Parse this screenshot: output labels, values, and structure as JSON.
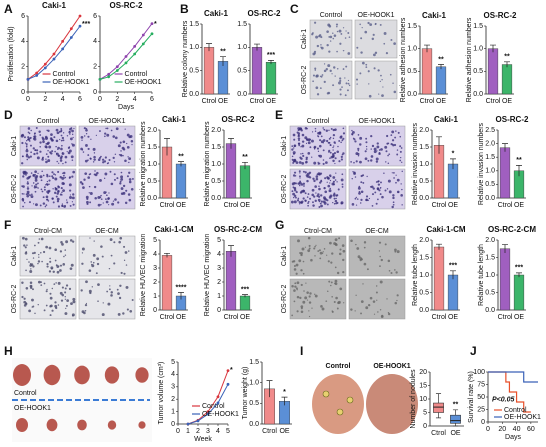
{
  "panel_labels": [
    "A",
    "B",
    "C",
    "D",
    "E",
    "F",
    "G",
    "H",
    "I",
    "J"
  ],
  "image_panels": [
    {
      "columns": [
        "Control",
        "OE-HOOK1"
      ],
      "rows": [
        "Caki-1",
        "OS-RC-2"
      ]
    },
    {
      "columns": [
        "Control",
        "OE-HOOK1"
      ],
      "rows": [
        "Caki-1",
        "OS-RC-2"
      ]
    },
    {
      "columns": [
        "Control",
        "OE-HOOK1"
      ],
      "rows": [
        "Caki-1",
        "OS-RC-2"
      ]
    },
    {
      "columns": [
        "Ctrol-CM",
        "OE-CM"
      ],
      "rows": [
        "Caki-1",
        "OS-RC-2"
      ]
    },
    {
      "columns": [
        "Ctrol-CM",
        "OE-CM"
      ],
      "rows": [
        "Caki-1",
        "OS-RC-2"
      ]
    }
  ],
  "photos": [
    {
      "labels": [
        "Control",
        "OE-HOOK1"
      ]
    },
    {
      "labels": [
        "Control",
        "OE-HOOK1"
      ]
    }
  ],
  "charts": [
    {
      "type": "line",
      "title": "Caki-1",
      "ylabel": "Proliferation (fold)",
      "x": [
        0,
        1,
        2,
        3,
        4,
        5,
        6
      ],
      "xlim": [
        0,
        6
      ],
      "xticks": [
        0,
        2,
        4,
        6
      ],
      "ylim": [
        0,
        6
      ],
      "yticks": [
        0,
        2,
        4,
        6
      ],
      "annotation": "***",
      "series": [
        {
          "name": "Control",
          "color": "#d9363e",
          "values": [
            1,
            1.5,
            2.2,
            3,
            4,
            5,
            6
          ]
        },
        {
          "name": "OE-HOOK1",
          "color": "#3a62b8",
          "values": [
            1,
            1.3,
            1.9,
            2.6,
            3.4,
            4.3,
            5.2
          ]
        }
      ]
    },
    {
      "type": "line",
      "title": "OS-RC-2",
      "xlabel": "Days",
      "x": [
        0,
        1,
        2,
        3,
        4,
        5,
        6
      ],
      "xlim": [
        0,
        6
      ],
      "xticks": [
        0,
        2,
        4,
        6
      ],
      "ylim": [
        0,
        6
      ],
      "yticks": [
        0,
        2,
        4,
        6
      ],
      "annotation": "*",
      "series": [
        {
          "name": "Control",
          "color": "#8e44ad",
          "values": [
            1,
            1.4,
            2,
            2.8,
            3.6,
            4.5,
            5.4
          ]
        },
        {
          "name": "OE-HOOK1",
          "color": "#27ae60",
          "values": [
            1,
            1.2,
            1.7,
            2.3,
            3,
            3.8,
            4.6
          ]
        }
      ]
    },
    {
      "type": "bar",
      "title": "Caki-1",
      "ylabel": "Relative colony numbers",
      "categories": [
        "Ctrol",
        "OE"
      ],
      "values": [
        1.0,
        0.7
      ],
      "errors": [
        0.08,
        0.1
      ],
      "colors": [
        "#f08a8a",
        "#5b8fd6"
      ],
      "ylim": [
        0,
        1.5
      ],
      "yticks": [
        {
          "value": 0,
          "label": "0.0"
        },
        {
          "value": 0.5,
          "label": "0.5"
        },
        {
          "value": 1,
          "label": "1.0"
        },
        {
          "value": 1.5,
          "label": "1.5"
        }
      ],
      "annotation": "**"
    },
    {
      "type": "bar",
      "title": "OS-RC-2",
      "categories": [
        "Ctrol",
        "OE"
      ],
      "values": [
        1.0,
        0.68
      ],
      "errors": [
        0.07,
        0.04
      ],
      "colors": [
        "#a05fc0",
        "#3cb56a"
      ],
      "ylim": [
        0,
        1.5
      ],
      "yticks": [
        {
          "value": 0,
          "label": "0.0"
        },
        {
          "value": 0.5,
          "label": "0.5"
        },
        {
          "value": 1,
          "label": "1.0"
        },
        {
          "value": 1.5,
          "label": "1.5"
        }
      ],
      "annotation": "***"
    },
    {
      "type": "bar",
      "title": "Caki-1",
      "ylabel": "Relative adhesion numbers",
      "categories": [
        "Ctrol",
        "OE"
      ],
      "values": [
        1.0,
        0.6
      ],
      "errors": [
        0.08,
        0.05
      ],
      "colors": [
        "#f08a8a",
        "#5b8fd6"
      ],
      "ylim": [
        0,
        1.5
      ],
      "yticks": [
        {
          "value": 0,
          "label": "0.0"
        },
        {
          "value": 0.5,
          "label": "0.5"
        },
        {
          "value": 1,
          "label": "1.0"
        },
        {
          "value": 1.5,
          "label": "1.5"
        }
      ],
      "annotation": "**"
    },
    {
      "type": "bar",
      "title": "OS-RC-2",
      "ylabel": "Relative adhesion numbers",
      "categories": [
        "Ctrol",
        "OE"
      ],
      "values": [
        1.0,
        0.65
      ],
      "errors": [
        0.08,
        0.06
      ],
      "colors": [
        "#a05fc0",
        "#3cb56a"
      ],
      "ylim": [
        0,
        1.5
      ],
      "yticks": [
        {
          "value": 0,
          "label": "0.0"
        },
        {
          "value": 0.5,
          "label": "0.5"
        },
        {
          "value": 1,
          "label": "1.0"
        },
        {
          "value": 1.5,
          "label": "1.5"
        }
      ],
      "annotation": "**"
    },
    {
      "type": "bar",
      "title": "Caki-1",
      "ylabel": "Relative migration numbers",
      "categories": [
        "Ctrol",
        "OE"
      ],
      "values": [
        1.5,
        1.0
      ],
      "errors": [
        0.25,
        0.07
      ],
      "colors": [
        "#f08a8a",
        "#5b8fd6"
      ],
      "ylim": [
        0,
        2
      ],
      "yticks": [
        {
          "value": 0,
          "label": "0.0"
        },
        {
          "value": 0.5,
          "label": "0.5"
        },
        {
          "value": 1,
          "label": "1.0"
        },
        {
          "value": 1.5,
          "label": "1.5"
        },
        {
          "value": 2,
          "label": "2.0"
        }
      ],
      "annotation": "**"
    },
    {
      "type": "bar",
      "title": "OS-RC-2",
      "ylabel": "Relative migration numbers",
      "categories": [
        "Ctrol",
        "OE"
      ],
      "values": [
        1.6,
        0.95
      ],
      "errors": [
        0.15,
        0.1
      ],
      "colors": [
        "#a05fc0",
        "#3cb56a"
      ],
      "ylim": [
        0,
        2
      ],
      "yticks": [
        {
          "value": 0,
          "label": "0.0"
        },
        {
          "value": 0.5,
          "label": "0.5"
        },
        {
          "value": 1,
          "label": "1.0"
        },
        {
          "value": 1.5,
          "label": "1.5"
        },
        {
          "value": 2,
          "label": "2.0"
        }
      ],
      "annotation": "**"
    },
    {
      "type": "bar",
      "title": "Caki-1",
      "ylabel": "Relative invasion numbers",
      "categories": [
        "Ctrol",
        "OE"
      ],
      "values": [
        1.55,
        1.0
      ],
      "errors": [
        0.25,
        0.15
      ],
      "colors": [
        "#f08a8a",
        "#5b8fd6"
      ],
      "ylim": [
        0,
        2
      ],
      "yticks": [
        {
          "value": 0,
          "label": "0.0"
        },
        {
          "value": 0.5,
          "label": "0.5"
        },
        {
          "value": 1,
          "label": "1.0"
        },
        {
          "value": 1.5,
          "label": "1.5"
        },
        {
          "value": 2,
          "label": "2.0"
        }
      ],
      "annotation": "*"
    },
    {
      "type": "bar",
      "title": "OS-RC-2",
      "ylabel": "Relative invasion numbers",
      "categories": [
        "Ctrol",
        "OE"
      ],
      "values": [
        1.85,
        1.0
      ],
      "errors": [
        0.15,
        0.2
      ],
      "colors": [
        "#a05fc0",
        "#3cb56a"
      ],
      "ylim": [
        0,
        2.5
      ],
      "yticks": [
        {
          "value": 0,
          "label": "0.0"
        },
        {
          "value": 0.5,
          "label": "0.5"
        },
        {
          "value": 1,
          "label": "1.0"
        },
        {
          "value": 1.5,
          "label": "1.5"
        },
        {
          "value": 2,
          "label": "2.0"
        },
        {
          "value": 2.5,
          "label": "2.5"
        }
      ],
      "annotation": "**"
    },
    {
      "type": "bar",
      "title": "Caki-1-CM",
      "ylabel": "Relative HUVEC migration",
      "categories": [
        "Ctrol",
        "OE"
      ],
      "values": [
        3.9,
        1.0
      ],
      "errors": [
        0.15,
        0.25
      ],
      "colors": [
        "#f08a8a",
        "#5b8fd6"
      ],
      "ylim": [
        0,
        5
      ],
      "yticks": [
        0,
        1,
        2,
        3,
        4,
        5
      ],
      "annotation": "****"
    },
    {
      "type": "bar",
      "title": "OS-RC-2-CM",
      "ylabel": "Relative HUVEC migration",
      "categories": [
        "Ctrol",
        "OE"
      ],
      "values": [
        4.2,
        1.0
      ],
      "errors": [
        0.4,
        0.1
      ],
      "colors": [
        "#a05fc0",
        "#3cb56a"
      ],
      "ylim": [
        0,
        5
      ],
      "yticks": [
        0,
        1,
        2,
        3,
        4,
        5
      ],
      "annotation": "***"
    },
    {
      "type": "bar",
      "title": "Caki-1-CM",
      "ylabel": "Relative tube length",
      "categories": [
        "Ctrol",
        "OE"
      ],
      "values": [
        1.8,
        1.0
      ],
      "errors": [
        0.08,
        0.12
      ],
      "colors": [
        "#f08a8a",
        "#5b8fd6"
      ],
      "ylim": [
        0,
        2
      ],
      "yticks": [
        {
          "value": 0,
          "label": "0.0"
        },
        {
          "value": 0.5,
          "label": "0.5"
        },
        {
          "value": 1,
          "label": "1.0"
        },
        {
          "value": 1.5,
          "label": "1.5"
        },
        {
          "value": 2,
          "label": "2.0"
        }
      ],
      "annotation": "***"
    },
    {
      "type": "bar",
      "title": "OS-RC-2-CM",
      "ylabel": "Relative tube length",
      "categories": [
        "Ctrol",
        "OE"
      ],
      "values": [
        1.75,
        1.0
      ],
      "errors": [
        0.12,
        0.06
      ],
      "colors": [
        "#a05fc0",
        "#3cb56a"
      ],
      "ylim": [
        0,
        2
      ],
      "yticks": [
        {
          "value": 0,
          "label": "0.0"
        },
        {
          "value": 0.5,
          "label": "0.5"
        },
        {
          "value": 1,
          "label": "1.0"
        },
        {
          "value": 1.5,
          "label": "1.5"
        },
        {
          "value": 2,
          "label": "2.0"
        }
      ],
      "annotation": "***"
    },
    {
      "type": "line",
      "ylabel": "Tumor volume (cm³)",
      "xlabel": "Week",
      "x": [
        1,
        2,
        3,
        4,
        5
      ],
      "xlim": [
        0,
        5
      ],
      "xticks": [
        0,
        1,
        2,
        3,
        4,
        5
      ],
      "ylim": [
        0,
        5
      ],
      "yticks": [
        0,
        1,
        2,
        3,
        4,
        5
      ],
      "annotation": "*",
      "series": [
        {
          "name": "Control",
          "color": "#d9363e",
          "values": [
            0,
            0.3,
            1.0,
            2.2,
            4.3
          ]
        },
        {
          "name": "OE-HOOK1",
          "color": "#3a62b8",
          "values": [
            0,
            0.25,
            0.8,
            1.7,
            3.2
          ]
        }
      ]
    },
    {
      "type": "bar",
      "ylabel": "Tumor weight (g)",
      "categories": [
        "Ctrol",
        "OE"
      ],
      "values": [
        0.85,
        0.55
      ],
      "errors": [
        0.2,
        0.1
      ],
      "colors": [
        "#f08a8a",
        "#5b8fd6"
      ],
      "ylim": [
        0,
        1.5
      ],
      "yticks": [
        {
          "value": 0,
          "label": "0.0"
        },
        {
          "value": 0.5,
          "label": "0.5"
        },
        {
          "value": 1,
          "label": "1.0"
        },
        {
          "value": 1.5,
          "label": "1.5"
        }
      ],
      "annotation": "*"
    },
    {
      "type": "box",
      "ylabel": "Number of nodules",
      "categories": [
        "Ctrol",
        "OE"
      ],
      "colors": [
        "#f08a8a",
        "#5b8fd6"
      ],
      "ylim": [
        0,
        20
      ],
      "yticks": [
        0,
        5,
        10,
        15,
        20
      ],
      "annotation": "**",
      "boxes": [
        {
          "min": 3,
          "q1": 5,
          "median": 7,
          "q3": 8.5,
          "max": 12
        },
        {
          "min": 0,
          "q1": 1,
          "median": 2,
          "q3": 4,
          "max": 6
        }
      ]
    },
    {
      "type": "step",
      "ylabel": "Survival rate (%)",
      "xlabel": "Days",
      "xlim": [
        0,
        70
      ],
      "xticks": [
        0,
        20,
        40,
        60
      ],
      "ylim": [
        0,
        100
      ],
      "yticks": [
        0,
        25,
        50,
        75,
        100
      ],
      "annotation": "P<0.05",
      "series": [
        {
          "name": "Control",
          "color": "#e8502a",
          "x": [
            0,
            25,
            30,
            40,
            50,
            60
          ],
          "values": [
            100,
            80,
            60,
            40,
            20,
            20
          ]
        },
        {
          "name": "OE-HOOK1",
          "color": "#3a62b8",
          "x": [
            0,
            50,
            70
          ],
          "values": [
            100,
            80,
            80
          ]
        }
      ]
    }
  ]
}
